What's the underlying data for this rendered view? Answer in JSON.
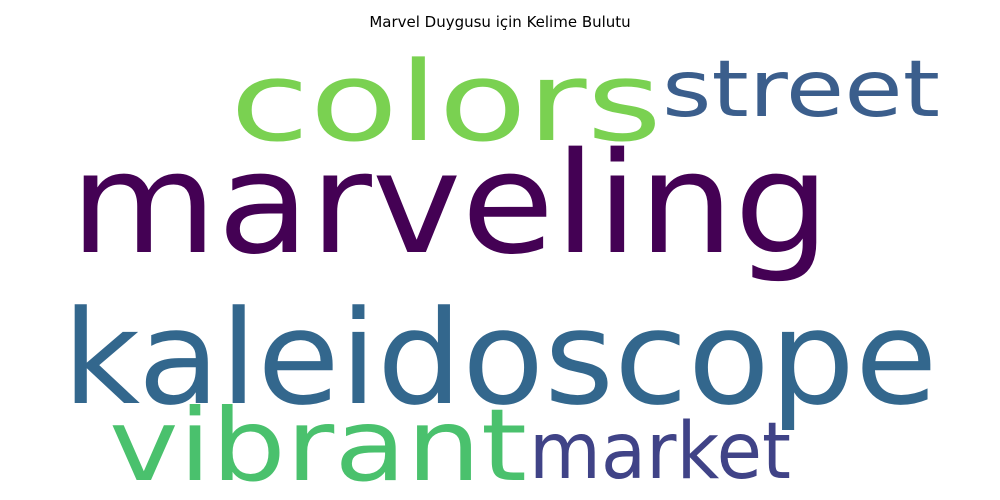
{
  "title": "Marvel Duygusu için Kelime Bulutu",
  "words": [
    {
      "text": "colors",
      "color": "#7ad151"
    },
    {
      "text": "street",
      "color": "#3b5e8c"
    },
    {
      "text": "marveling",
      "color": "#440154"
    },
    {
      "text": "kaleidoscope",
      "color": "#33678d"
    },
    {
      "text": "vibrant",
      "color": "#4ac16d"
    },
    {
      "text": "market",
      "color": "#404387"
    }
  ]
}
